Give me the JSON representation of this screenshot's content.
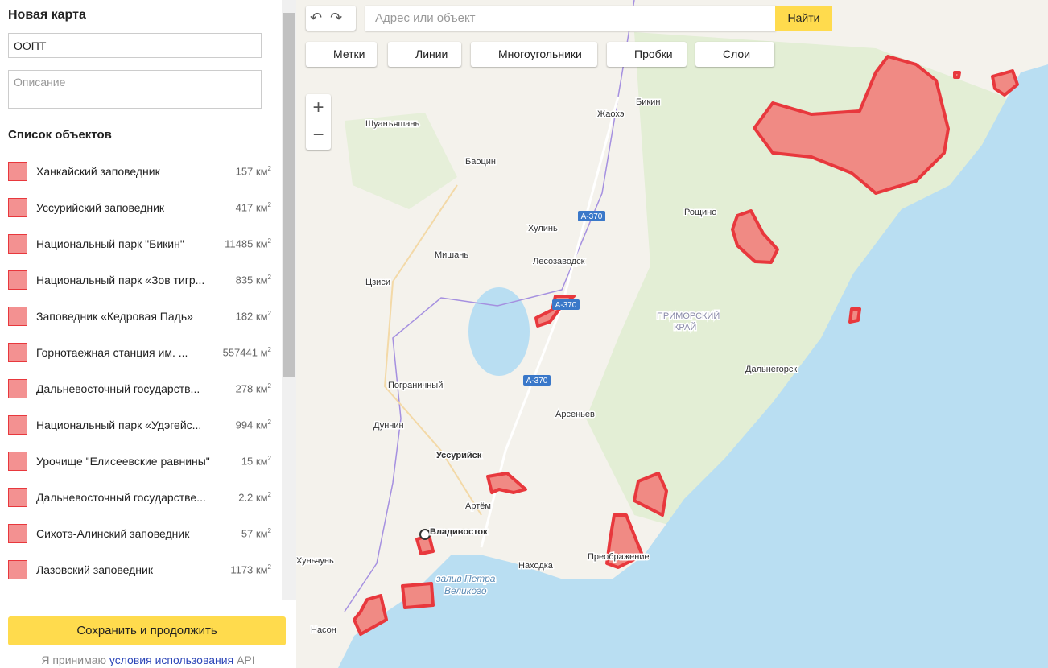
{
  "sidebar": {
    "title": "Новая карта",
    "name_value": "ООПТ",
    "description_placeholder": "Описание",
    "list_title": "Список объектов",
    "objects": [
      {
        "name": "Ханкайский заповедник",
        "area": "157",
        "unit": "км",
        "power": "2"
      },
      {
        "name": "Уссурийский заповедник",
        "area": "417",
        "unit": "км",
        "power": "2"
      },
      {
        "name": "Национальный парк \"Бикин\"",
        "area": "11485",
        "unit": "км",
        "power": "2"
      },
      {
        "name": "Национальный парк «Зов тигр...",
        "area": "835",
        "unit": "км",
        "power": "2"
      },
      {
        "name": "Заповедник «Кедровая Падь»",
        "area": "182",
        "unit": "км",
        "power": "2"
      },
      {
        "name": "Горнотаежная станция им. ...",
        "area": "557441",
        "unit": "м",
        "power": "2"
      },
      {
        "name": "Дальневосточный государств...",
        "area": "278",
        "unit": "км",
        "power": "2"
      },
      {
        "name": "Национальный парк «Удэгейс...",
        "area": "994",
        "unit": "км",
        "power": "2"
      },
      {
        "name": "Урочище \"Елисеевские равнины\"",
        "area": "15",
        "unit": "км",
        "power": "2"
      },
      {
        "name": "Дальневосточный государстве...",
        "area": "2.2",
        "unit": "км",
        "power": "2"
      },
      {
        "name": "Сихотэ-Алинский заповедник",
        "area": "57",
        "unit": "км",
        "power": "2"
      },
      {
        "name": "Лазовский заповедник",
        "area": "1173",
        "unit": "км",
        "power": "2"
      }
    ],
    "save_button": "Сохранить и продолжить",
    "terms_prefix": "Я принимаю",
    "terms_link": "условия использования",
    "terms_suffix": "API"
  },
  "toolbar": {
    "search_placeholder": "Адрес или объект",
    "search_button": "Найти",
    "tools": [
      "Метки",
      "Линии",
      "Многоугольники",
      "Пробки",
      "Слои"
    ]
  },
  "map": {
    "labels": [
      "Шуанъяшань",
      "Баоцин",
      "Бикин",
      "Жаохэ",
      "Хулинь",
      "Мишань",
      "Лесозаводск",
      "Цзиси",
      "Рощино",
      "ПРИМОРСКИЙ",
      "КРАЙ",
      "Дальнегорск",
      "Пограничный",
      "Арсеньев",
      "Дуннин",
      "Уссурийск",
      "Артём",
      "Владивосток",
      "Хуньчунь",
      "Находка",
      "Преображение",
      "Насон",
      "залив Петра",
      "Великого"
    ],
    "roads": [
      "А-370",
      "А-370",
      "А-370"
    ]
  }
}
